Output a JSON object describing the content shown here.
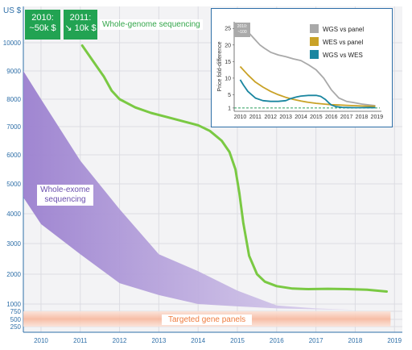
{
  "chart_data": [
    {
      "type": "area",
      "ylabel": "US $",
      "x_ticks": [
        "2010",
        "2011",
        "2012",
        "2013",
        "2014",
        "2015",
        "2016",
        "2017",
        "2018",
        "2019"
      ],
      "y_ticks": [
        250,
        500,
        750,
        1000,
        2000,
        3000,
        4000,
        5000,
        6000,
        7000,
        8000,
        9000,
        10000
      ],
      "xlim": [
        2009.55,
        2019.2
      ],
      "series": [
        {
          "name": "Whole-genome sequencing",
          "type": "line",
          "color": "#7ac943",
          "x": [
            2011.05,
            2011.3,
            2011.6,
            2011.8,
            2012.0,
            2012.4,
            2012.8,
            2013.2,
            2013.6,
            2014.0,
            2014.3,
            2014.6,
            2014.8,
            2014.95,
            2015.05,
            2015.15,
            2015.3,
            2015.5,
            2015.7,
            2016.0,
            2016.4,
            2016.8,
            2017.3,
            2017.8,
            2018.3,
            2018.8
          ],
          "y": [
            9900,
            9400,
            8800,
            8300,
            8000,
            7700,
            7500,
            7350,
            7200,
            7050,
            6850,
            6500,
            6100,
            5500,
            4700,
            3700,
            2600,
            2000,
            1750,
            1600,
            1520,
            1500,
            1510,
            1500,
            1480,
            1420
          ]
        },
        {
          "name": "Whole-exome sequencing",
          "type": "band",
          "color": "#9b80cf",
          "x": [
            2009.55,
            2010.0,
            2011.0,
            2012.0,
            2013.0,
            2014.0,
            2015.0,
            2016.0,
            2017.0,
            2018.0,
            2018.9
          ],
          "upper": [
            9000,
            8000,
            5800,
            4150,
            2650,
            2100,
            1450,
            950,
            850,
            800,
            780
          ],
          "lower": [
            4550,
            3650,
            2650,
            1700,
            1300,
            1000,
            920,
            850,
            820,
            800,
            780
          ]
        },
        {
          "name": "Targeted gene panels",
          "type": "band",
          "color": "#f9c6b4",
          "x": [
            2009.55,
            2018.9
          ],
          "upper": [
            750,
            750
          ],
          "lower": [
            250,
            250
          ]
        }
      ],
      "annotations": [
        {
          "text_line1": "2010:",
          "text_line2": "~50k $",
          "color": "#22a352"
        },
        {
          "text_line1": "2011:",
          "text_line2": "↘ 10k $",
          "color": "#22a352"
        }
      ]
    },
    {
      "type": "line",
      "ylabel": "Price fold-difference",
      "x_ticks": [
        "2010",
        "2011",
        "2012",
        "2013",
        "2014",
        "2015",
        "2016",
        "2017",
        "2018",
        "2019"
      ],
      "y_ticks": [
        1,
        5,
        10,
        15,
        20,
        25
      ],
      "ylim": [
        0,
        27
      ],
      "baseline": 1,
      "annotation": {
        "line1": "2010:",
        "line2": "~100",
        "color": "#aaaaaa"
      },
      "series": [
        {
          "name": "WGS vs panel",
          "color": "#a9a9a9",
          "x": [
            2010.0,
            2010.3,
            2010.6,
            2011.0,
            2011.3,
            2011.6,
            2012.0,
            2012.5,
            2013.0,
            2013.5,
            2014.0,
            2014.5,
            2015.0,
            2015.5,
            2016.0,
            2016.5,
            2017.0,
            2017.5,
            2018.0,
            2018.5,
            2018.9
          ],
          "y": [
            25,
            25,
            23.5,
            21.5,
            20,
            19,
            17.8,
            17,
            16.5,
            15.8,
            15.3,
            14,
            12.5,
            10,
            6.5,
            4,
            3,
            2.6,
            2.2,
            1.9,
            1.7
          ]
        },
        {
          "name": "WES vs panel",
          "color": "#c9a227",
          "x": [
            2010.0,
            2010.5,
            2011.0,
            2011.5,
            2012.0,
            2012.5,
            2013.0,
            2013.5,
            2014.0,
            2014.5,
            2015.0,
            2015.5,
            2016.0,
            2016.5,
            2017.0,
            2017.5,
            2018.0,
            2018.5,
            2018.9
          ],
          "y": [
            13.5,
            11,
            8.8,
            7.3,
            6,
            5,
            4.2,
            3.6,
            3.1,
            2.7,
            2.4,
            2.2,
            2.0,
            1.9,
            1.8,
            1.7,
            1.6,
            1.55,
            1.5
          ]
        },
        {
          "name": "WGS vs WES",
          "color": "#1a86a0",
          "x": [
            2010.0,
            2010.2,
            2010.5,
            2011.0,
            2011.5,
            2012.0,
            2012.5,
            2013.0,
            2013.3,
            2013.7,
            2014.0,
            2014.5,
            2015.0,
            2015.3,
            2015.6,
            2015.8,
            2016.0,
            2016.3,
            2016.7,
            2017.0,
            2017.5,
            2018.0,
            2018.5,
            2018.9
          ],
          "y": [
            9.5,
            8,
            6,
            4,
            3.2,
            3,
            3,
            3.2,
            3.8,
            4.3,
            4.6,
            4.8,
            4.8,
            4.5,
            3.6,
            2.7,
            1.9,
            1.4,
            1.2,
            1.15,
            1.1,
            1.1,
            1.15,
            1.1
          ]
        }
      ]
    }
  ]
}
